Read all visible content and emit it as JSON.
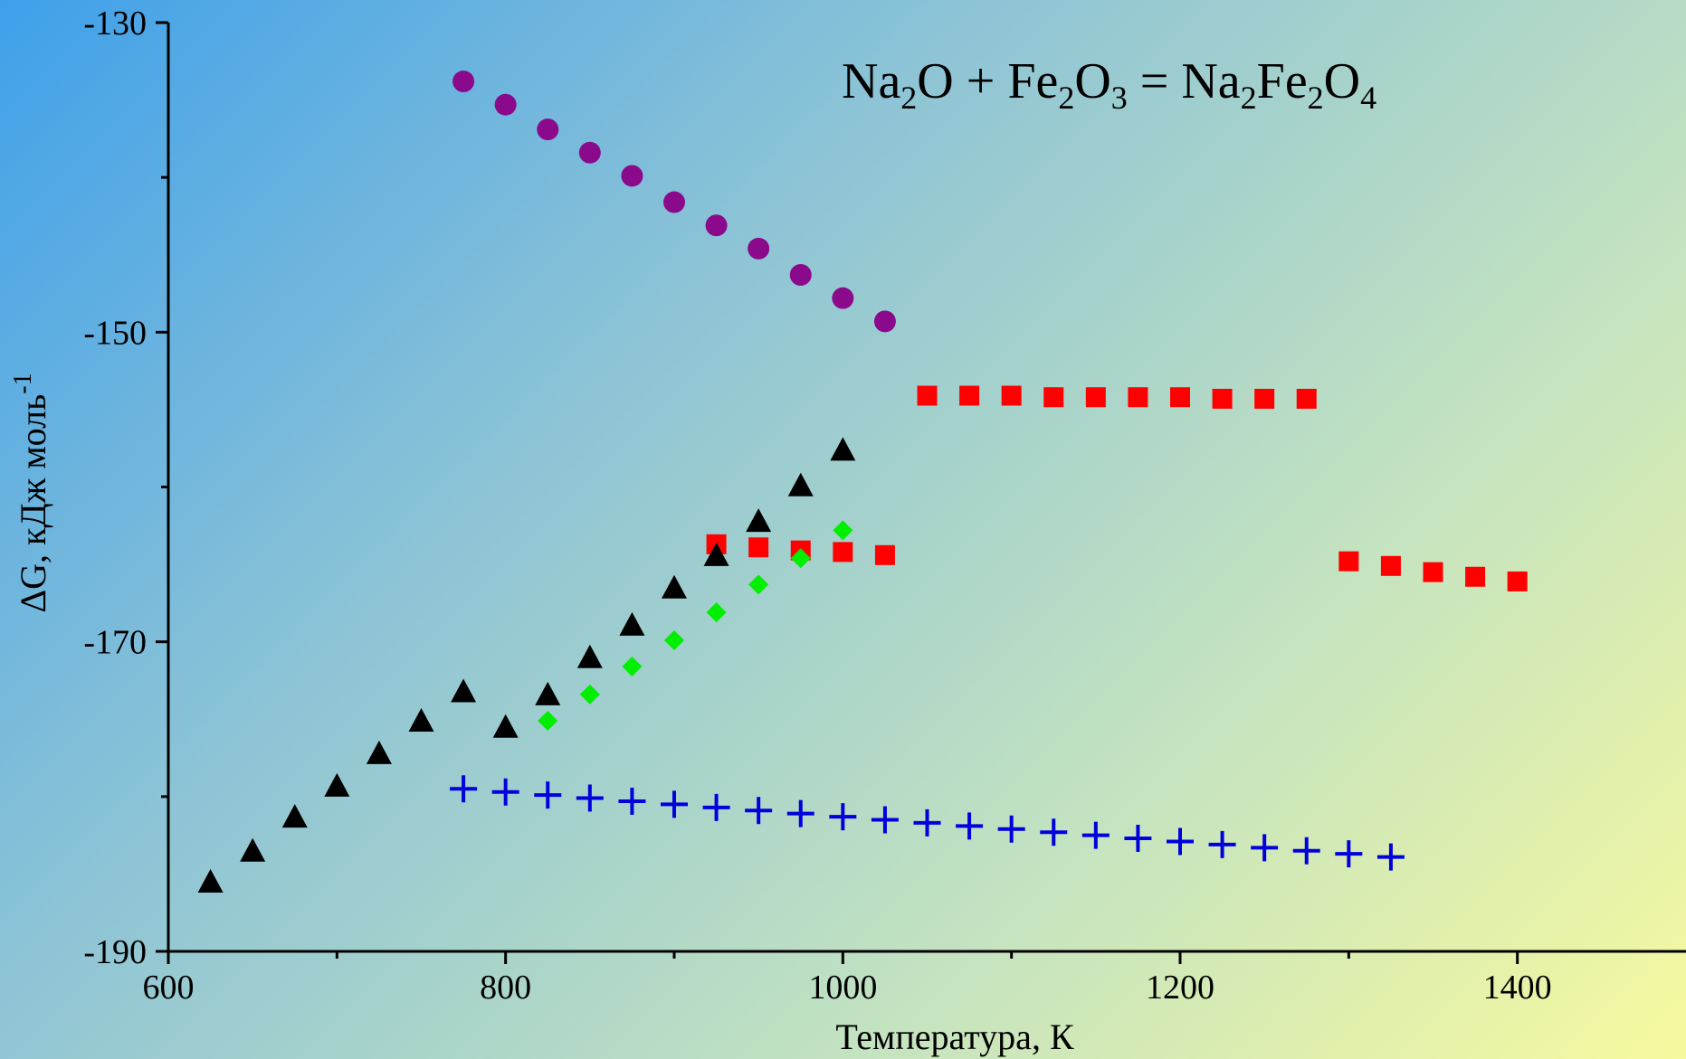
{
  "chart_data": {
    "type": "scatter",
    "title_parts": [
      {
        "t": "Na",
        "sub": false
      },
      {
        "t": "2",
        "sub": true
      },
      {
        "t": "O + Fe",
        "sub": false
      },
      {
        "t": "2",
        "sub": true
      },
      {
        "t": "O",
        "sub": false
      },
      {
        "t": "3",
        "sub": true
      },
      {
        "t": " = Na",
        "sub": false
      },
      {
        "t": "2",
        "sub": true
      },
      {
        "t": "Fe",
        "sub": false
      },
      {
        "t": "2",
        "sub": true
      },
      {
        "t": "O",
        "sub": false
      },
      {
        "t": "4",
        "sub": true
      }
    ],
    "xlabel": "Температура, К",
    "ylabel": "ΔG, кДж моль",
    "ylabel_sup": "-1",
    "xlim": [
      600,
      1500
    ],
    "ylim": [
      -190,
      -130
    ],
    "x_ticks": [
      600,
      800,
      1000,
      1200,
      1400
    ],
    "x_tick_labels": [
      "600",
      "800",
      "1000",
      "1200",
      "1400"
    ],
    "y_ticks": [
      -130,
      -150,
      -170,
      -190
    ],
    "y_tick_labels": [
      "-130",
      "-150",
      "-170",
      "-190"
    ],
    "x_minor_ticks": [
      700,
      900,
      1100,
      1300
    ],
    "y_minor_ticks": [
      -140,
      -160,
      -180
    ],
    "legend": "none",
    "series": [
      {
        "marker": "circle",
        "color": "#8b0a8b",
        "x": [
          775,
          800,
          825,
          850,
          875,
          900,
          925,
          950,
          975,
          1000,
          1025
        ],
        "y": [
          -133.8,
          -135.3,
          -136.9,
          -138.4,
          -139.9,
          -141.6,
          -143.1,
          -144.6,
          -146.3,
          -147.8,
          -149.3
        ]
      },
      {
        "marker": "square",
        "color": "#ff0000",
        "x": [
          1050,
          1075,
          1100,
          1125,
          1150,
          1175,
          1200,
          1225,
          1250,
          1275
        ],
        "y": [
          -154.1,
          -154.1,
          -154.1,
          -154.2,
          -154.2,
          -154.2,
          -154.2,
          -154.3,
          -154.3,
          -154.3
        ]
      },
      {
        "marker": "square",
        "color": "#ff0000",
        "x": [
          925,
          950,
          975,
          1000,
          1025
        ],
        "y": [
          -163.7,
          -163.9,
          -164.1,
          -164.2,
          -164.4
        ]
      },
      {
        "marker": "square",
        "color": "#ff0000",
        "x": [
          1300,
          1325,
          1350,
          1375,
          1400
        ],
        "y": [
          -164.8,
          -165.1,
          -165.5,
          -165.8,
          -166.1
        ]
      },
      {
        "marker": "triangle",
        "color": "#000000",
        "x": [
          625,
          650,
          675,
          700,
          725,
          750,
          775,
          800,
          825,
          850,
          875,
          900,
          925,
          950,
          975,
          1000
        ],
        "y": [
          -185.5,
          -183.5,
          -181.3,
          -179.3,
          -177.2,
          -175.1,
          -173.2,
          -175.5,
          -173.4,
          -171.0,
          -168.9,
          -166.5,
          -164.4,
          -162.2,
          -159.9,
          -157.6
        ]
      },
      {
        "marker": "diamond",
        "color": "#00ee00",
        "x": [
          825,
          850,
          875,
          900,
          925,
          950,
          975,
          1000
        ],
        "y": [
          -175.1,
          -173.4,
          -171.6,
          -169.9,
          -168.1,
          -166.3,
          -164.6,
          -162.8
        ]
      },
      {
        "marker": "plus",
        "color": "#0000dd",
        "x": [
          775,
          800,
          825,
          850,
          875,
          900,
          925,
          950,
          975,
          1000,
          1025,
          1050,
          1075,
          1100,
          1125,
          1150,
          1175,
          1200,
          1225,
          1250,
          1275,
          1300,
          1325
        ],
        "y": [
          -179.5,
          -179.7,
          -179.9,
          -180.1,
          -180.3,
          -180.5,
          -180.7,
          -180.9,
          -181.1,
          -181.3,
          -181.5,
          -181.7,
          -181.9,
          -182.1,
          -182.3,
          -182.5,
          -182.7,
          -182.9,
          -183.1,
          -183.3,
          -183.5,
          -183.7,
          -183.9
        ]
      }
    ]
  }
}
